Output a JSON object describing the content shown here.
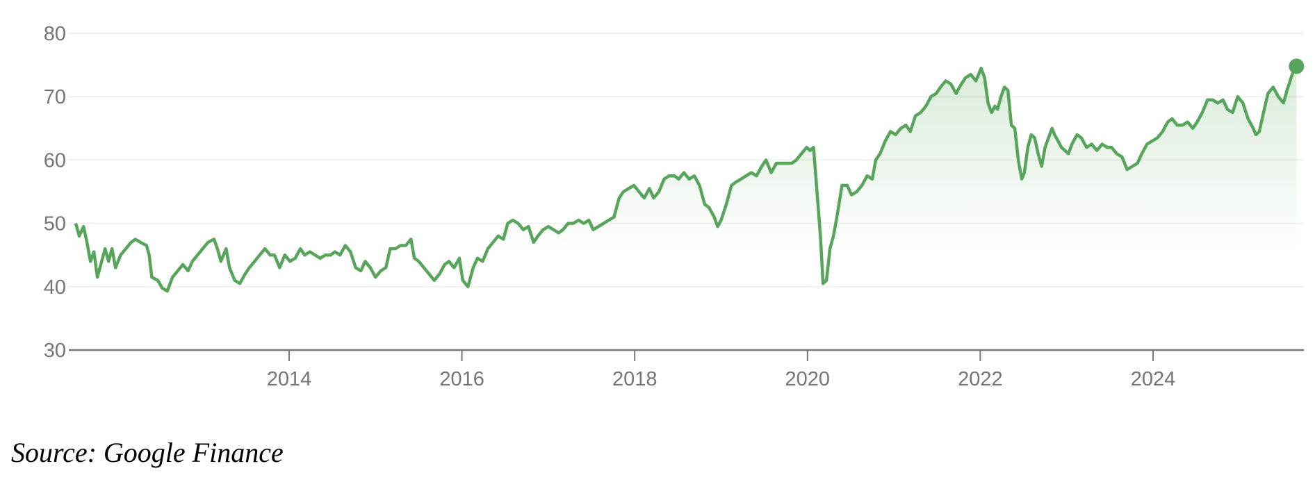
{
  "source": "Source: Google Finance",
  "chart_data": {
    "type": "area",
    "title": "",
    "xlabel": "",
    "ylabel": "",
    "xlim": [
      2011.45,
      2025.75
    ],
    "ylim": [
      30,
      80
    ],
    "yticks": [
      "30",
      "40",
      "50",
      "60",
      "70",
      "80"
    ],
    "xticks": [
      "2014",
      "2016",
      "2018",
      "2020",
      "2022",
      "2024"
    ],
    "grid": true,
    "line_color": "#57a55a",
    "fill_color": "#57a55a",
    "last_point_marker": true,
    "points": [
      [
        2011.53,
        50
      ],
      [
        2011.57,
        48
      ],
      [
        2011.62,
        49.5
      ],
      [
        2011.66,
        47
      ],
      [
        2011.7,
        44
      ],
      [
        2011.74,
        45.5
      ],
      [
        2011.78,
        41.5
      ],
      [
        2011.83,
        44
      ],
      [
        2011.87,
        46
      ],
      [
        2011.91,
        44
      ],
      [
        2011.95,
        46
      ],
      [
        2011.99,
        43
      ],
      [
        2012.05,
        45
      ],
      [
        2012.11,
        46
      ],
      [
        2012.17,
        47
      ],
      [
        2012.22,
        47.5
      ],
      [
        2012.28,
        47
      ],
      [
        2012.35,
        46.5
      ],
      [
        2012.38,
        45
      ],
      [
        2012.41,
        41.5
      ],
      [
        2012.48,
        41
      ],
      [
        2012.53,
        39.8
      ],
      [
        2012.59,
        39.3
      ],
      [
        2012.65,
        41.5
      ],
      [
        2012.71,
        42.5
      ],
      [
        2012.77,
        43.5
      ],
      [
        2012.83,
        42.5
      ],
      [
        2012.88,
        44
      ],
      [
        2012.94,
        45
      ],
      [
        2013.0,
        46
      ],
      [
        2013.06,
        47
      ],
      [
        2013.13,
        47.5
      ],
      [
        2013.17,
        46
      ],
      [
        2013.21,
        44
      ],
      [
        2013.27,
        46
      ],
      [
        2013.31,
        43
      ],
      [
        2013.37,
        41
      ],
      [
        2013.43,
        40.5
      ],
      [
        2013.49,
        42
      ],
      [
        2013.54,
        43
      ],
      [
        2013.6,
        44
      ],
      [
        2013.66,
        45
      ],
      [
        2013.72,
        46
      ],
      [
        2013.78,
        45
      ],
      [
        2013.83,
        45
      ],
      [
        2013.89,
        43
      ],
      [
        2013.95,
        45
      ],
      [
        2014.01,
        44
      ],
      [
        2014.07,
        44.5
      ],
      [
        2014.13,
        46
      ],
      [
        2014.18,
        45
      ],
      [
        2014.24,
        45.5
      ],
      [
        2014.3,
        45
      ],
      [
        2014.36,
        44.5
      ],
      [
        2014.42,
        45
      ],
      [
        2014.48,
        45
      ],
      [
        2014.53,
        45.5
      ],
      [
        2014.59,
        45
      ],
      [
        2014.65,
        46.5
      ],
      [
        2014.71,
        45.5
      ],
      [
        2014.77,
        43
      ],
      [
        2014.83,
        42.5
      ],
      [
        2014.88,
        44
      ],
      [
        2014.94,
        43
      ],
      [
        2015.0,
        41.5
      ],
      [
        2015.06,
        42.5
      ],
      [
        2015.12,
        43
      ],
      [
        2015.17,
        46
      ],
      [
        2015.23,
        46
      ],
      [
        2015.29,
        46.5
      ],
      [
        2015.35,
        46.5
      ],
      [
        2015.41,
        47.5
      ],
      [
        2015.45,
        44.5
      ],
      [
        2015.5,
        44
      ],
      [
        2015.56,
        43
      ],
      [
        2015.62,
        42
      ],
      [
        2015.68,
        41
      ],
      [
        2015.74,
        42
      ],
      [
        2015.8,
        43.5
      ],
      [
        2015.85,
        44
      ],
      [
        2015.91,
        43
      ],
      [
        2015.97,
        44.5
      ],
      [
        2016.01,
        41
      ],
      [
        2016.07,
        40
      ],
      [
        2016.13,
        43
      ],
      [
        2016.18,
        44.5
      ],
      [
        2016.24,
        44
      ],
      [
        2016.3,
        46
      ],
      [
        2016.36,
        47
      ],
      [
        2016.42,
        48
      ],
      [
        2016.48,
        47.5
      ],
      [
        2016.53,
        50
      ],
      [
        2016.59,
        50.5
      ],
      [
        2016.65,
        50
      ],
      [
        2016.71,
        49
      ],
      [
        2016.77,
        49.5
      ],
      [
        2016.83,
        47
      ],
      [
        2016.88,
        48
      ],
      [
        2016.94,
        49
      ],
      [
        2017.0,
        49.5
      ],
      [
        2017.06,
        49
      ],
      [
        2017.12,
        48.5
      ],
      [
        2017.17,
        49
      ],
      [
        2017.23,
        50
      ],
      [
        2017.29,
        50
      ],
      [
        2017.35,
        50.5
      ],
      [
        2017.41,
        50
      ],
      [
        2017.47,
        50.5
      ],
      [
        2017.52,
        49
      ],
      [
        2017.58,
        49.5
      ],
      [
        2017.64,
        50
      ],
      [
        2017.7,
        50.5
      ],
      [
        2017.76,
        51
      ],
      [
        2017.82,
        54
      ],
      [
        2017.87,
        55
      ],
      [
        2017.93,
        55.5
      ],
      [
        2017.99,
        56
      ],
      [
        2018.05,
        55
      ],
      [
        2018.11,
        54
      ],
      [
        2018.17,
        55.5
      ],
      [
        2018.22,
        54
      ],
      [
        2018.28,
        55
      ],
      [
        2018.34,
        57
      ],
      [
        2018.4,
        57.5
      ],
      [
        2018.46,
        57.5
      ],
      [
        2018.51,
        57
      ],
      [
        2018.57,
        58
      ],
      [
        2018.63,
        57
      ],
      [
        2018.69,
        57.5
      ],
      [
        2018.75,
        56
      ],
      [
        2018.81,
        53
      ],
      [
        2018.86,
        52.5
      ],
      [
        2018.92,
        51
      ],
      [
        2018.96,
        49.5
      ],
      [
        2019.0,
        50.5
      ],
      [
        2019.06,
        53
      ],
      [
        2019.12,
        56
      ],
      [
        2019.17,
        56.5
      ],
      [
        2019.23,
        57
      ],
      [
        2019.29,
        57.5
      ],
      [
        2019.35,
        58
      ],
      [
        2019.41,
        57.5
      ],
      [
        2019.47,
        59
      ],
      [
        2019.52,
        60
      ],
      [
        2019.58,
        58
      ],
      [
        2019.64,
        59.5
      ],
      [
        2019.7,
        59.5
      ],
      [
        2019.76,
        59.5
      ],
      [
        2019.82,
        59.5
      ],
      [
        2019.87,
        60
      ],
      [
        2019.93,
        61
      ],
      [
        2019.99,
        62
      ],
      [
        2020.03,
        61.5
      ],
      [
        2020.07,
        62
      ],
      [
        2020.11,
        55
      ],
      [
        2020.15,
        48
      ],
      [
        2020.18,
        40.5
      ],
      [
        2020.22,
        41
      ],
      [
        2020.26,
        46
      ],
      [
        2020.3,
        48
      ],
      [
        2020.34,
        51
      ],
      [
        2020.4,
        56
      ],
      [
        2020.46,
        56
      ],
      [
        2020.51,
        54.5
      ],
      [
        2020.57,
        55
      ],
      [
        2020.63,
        56
      ],
      [
        2020.69,
        57.5
      ],
      [
        2020.75,
        57
      ],
      [
        2020.79,
        60
      ],
      [
        2020.84,
        61
      ],
      [
        2020.9,
        63
      ],
      [
        2020.96,
        64.5
      ],
      [
        2021.02,
        64
      ],
      [
        2021.08,
        65
      ],
      [
        2021.14,
        65.5
      ],
      [
        2021.19,
        64.5
      ],
      [
        2021.25,
        67
      ],
      [
        2021.31,
        67.5
      ],
      [
        2021.37,
        68.5
      ],
      [
        2021.43,
        70
      ],
      [
        2021.49,
        70.5
      ],
      [
        2021.54,
        71.5
      ],
      [
        2021.6,
        72.5
      ],
      [
        2021.66,
        72
      ],
      [
        2021.72,
        70.5
      ],
      [
        2021.78,
        72
      ],
      [
        2021.83,
        73
      ],
      [
        2021.89,
        73.5
      ],
      [
        2021.95,
        72.5
      ],
      [
        2022.01,
        74.5
      ],
      [
        2022.05,
        73
      ],
      [
        2022.09,
        69
      ],
      [
        2022.13,
        67.5
      ],
      [
        2022.17,
        68.5
      ],
      [
        2022.2,
        68
      ],
      [
        2022.24,
        70
      ],
      [
        2022.28,
        71.5
      ],
      [
        2022.32,
        71
      ],
      [
        2022.36,
        65.5
      ],
      [
        2022.4,
        65
      ],
      [
        2022.44,
        60
      ],
      [
        2022.48,
        57
      ],
      [
        2022.51,
        58
      ],
      [
        2022.55,
        62
      ],
      [
        2022.59,
        64
      ],
      [
        2022.63,
        63.5
      ],
      [
        2022.67,
        61
      ],
      [
        2022.71,
        59
      ],
      [
        2022.75,
        62
      ],
      [
        2022.79,
        63.5
      ],
      [
        2022.83,
        65
      ],
      [
        2022.86,
        64
      ],
      [
        2022.9,
        63
      ],
      [
        2022.94,
        62
      ],
      [
        2022.98,
        61.5
      ],
      [
        2023.02,
        61
      ],
      [
        2023.06,
        62.5
      ],
      [
        2023.12,
        64
      ],
      [
        2023.17,
        63.5
      ],
      [
        2023.23,
        62
      ],
      [
        2023.29,
        62.5
      ],
      [
        2023.35,
        61.5
      ],
      [
        2023.41,
        62.5
      ],
      [
        2023.47,
        62
      ],
      [
        2023.52,
        62
      ],
      [
        2023.58,
        61
      ],
      [
        2023.64,
        60.5
      ],
      [
        2023.7,
        58.5
      ],
      [
        2023.76,
        59
      ],
      [
        2023.82,
        59.5
      ],
      [
        2023.87,
        61
      ],
      [
        2023.93,
        62.5
      ],
      [
        2023.99,
        63
      ],
      [
        2024.05,
        63.5
      ],
      [
        2024.11,
        64.5
      ],
      [
        2024.17,
        66
      ],
      [
        2024.22,
        66.5
      ],
      [
        2024.28,
        65.5
      ],
      [
        2024.34,
        65.5
      ],
      [
        2024.4,
        66
      ],
      [
        2024.46,
        65
      ],
      [
        2024.51,
        66
      ],
      [
        2024.57,
        67.5
      ],
      [
        2024.63,
        69.5
      ],
      [
        2024.69,
        69.5
      ],
      [
        2024.75,
        69
      ],
      [
        2024.81,
        69.5
      ],
      [
        2024.86,
        68
      ],
      [
        2024.92,
        67.5
      ],
      [
        2024.98,
        70
      ],
      [
        2025.04,
        69
      ],
      [
        2025.1,
        66.5
      ],
      [
        2025.16,
        65
      ],
      [
        2025.19,
        64
      ],
      [
        2025.23,
        64.5
      ],
      [
        2025.27,
        67
      ],
      [
        2025.33,
        70.5
      ],
      [
        2025.39,
        71.5
      ],
      [
        2025.45,
        70
      ],
      [
        2025.51,
        69
      ],
      [
        2025.55,
        71
      ],
      [
        2025.61,
        73.5
      ],
      [
        2025.66,
        74.8
      ]
    ]
  }
}
